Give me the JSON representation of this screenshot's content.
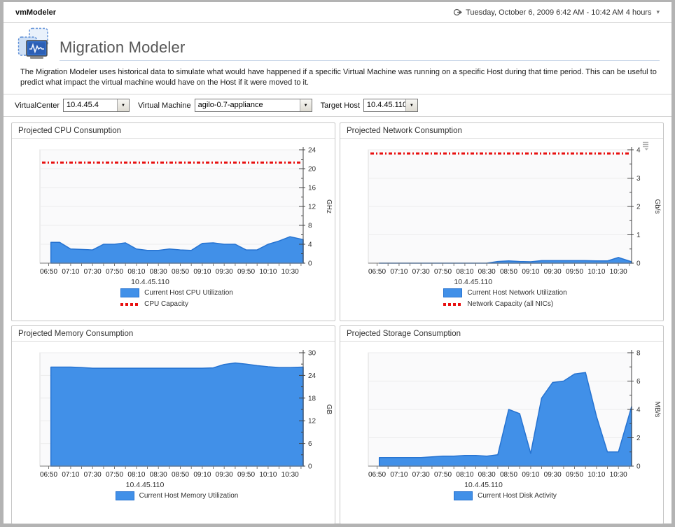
{
  "header": {
    "app_title": "vmModeler",
    "time_range": "Tuesday, October 6, 2009 6:42 AM - 10:42 AM 4 hours",
    "time_caret": "▾"
  },
  "page": {
    "title": "Migration Modeler",
    "description": "The Migration Modeler uses historical data to simulate what would have happened if a specific Virtual Machine was running on a specific Host during that time period. This can be useful to predict what impact the virtual machine would have on the Host if it were moved to it."
  },
  "filters": {
    "virtualcenter": {
      "label": "VirtualCenter",
      "value": "10.4.45.4"
    },
    "virtual_machine": {
      "label": "Virtual Machine",
      "value": "agilo-0.7-appliance"
    },
    "target_host": {
      "label": "Target Host",
      "value": "10.4.45.110"
    },
    "caret": "▼"
  },
  "colors": {
    "series_fill": "#4190e8",
    "series_stroke": "#2673d1",
    "capacity": "#e81010",
    "grid": "#ececec",
    "plot_bg": "#fafafb",
    "plot_border": "#dcdcdc",
    "axis": "#444444"
  },
  "chart_data": [
    {
      "id": "cpu",
      "type": "area",
      "panel_title": "Projected CPU Consumption",
      "ylabel": "GHz",
      "ylim": [
        0,
        24
      ],
      "ymajor": 4,
      "yminor": 2,
      "x_start": "06:42",
      "x_end": "10:42",
      "x_first_tick": "06:50",
      "xtick_minor_minutes": 10,
      "xlabel_every_minutes": 20,
      "x_ticklabels": [
        "06:50",
        "07:10",
        "07:30",
        "07:50",
        "08:10",
        "08:30",
        "08:50",
        "09:10",
        "09:30",
        "09:50",
        "10:10",
        "10:30"
      ],
      "times": [
        "06:52",
        "07:00",
        "07:10",
        "07:20",
        "07:30",
        "07:40",
        "07:50",
        "08:00",
        "08:10",
        "08:20",
        "08:30",
        "08:40",
        "08:50",
        "09:00",
        "09:10",
        "09:20",
        "09:30",
        "09:40",
        "09:50",
        "10:00",
        "10:10",
        "10:20",
        "10:30",
        "10:42"
      ],
      "values": [
        4.4,
        4.4,
        3.0,
        2.9,
        2.8,
        4.0,
        4.0,
        4.3,
        3.0,
        2.7,
        2.7,
        3.0,
        2.8,
        2.7,
        4.2,
        4.3,
        4.0,
        4.0,
        2.8,
        2.8,
        4.0,
        4.7,
        5.6,
        5.0
      ],
      "capacity_value": 21.3,
      "legend": {
        "host": "10.4.45.110",
        "series": "Current Host CPU Utilization",
        "capacity": "CPU Capacity"
      }
    },
    {
      "id": "network",
      "type": "area",
      "panel_title": "Projected Network Consumption",
      "ylabel": "Gb/s",
      "ylim": [
        0,
        4
      ],
      "ymajor": 1,
      "yminor": 0.5,
      "x_start": "06:42",
      "x_end": "10:42",
      "x_first_tick": "06:50",
      "xtick_minor_minutes": 10,
      "xlabel_every_minutes": 20,
      "x_ticklabels": [
        "06:50",
        "07:10",
        "07:30",
        "07:50",
        "08:10",
        "08:30",
        "08:50",
        "09:10",
        "09:30",
        "09:50",
        "10:10",
        "10:30"
      ],
      "times": [
        "06:52",
        "07:00",
        "07:10",
        "07:20",
        "07:30",
        "07:40",
        "07:50",
        "08:00",
        "08:10",
        "08:20",
        "08:30",
        "08:40",
        "08:50",
        "09:00",
        "09:10",
        "09:20",
        "09:30",
        "09:40",
        "09:50",
        "10:00",
        "10:10",
        "10:20",
        "10:30",
        "10:42"
      ],
      "values": [
        0,
        0,
        0,
        0,
        0,
        0,
        0,
        0,
        0,
        0,
        0,
        0.06,
        0.08,
        0.06,
        0.05,
        0.09,
        0.09,
        0.09,
        0.09,
        0.09,
        0.08,
        0.08,
        0.2,
        0.05
      ],
      "capacity_value": 3.87,
      "legend": {
        "host": "10.4.45.110",
        "series": "Current Host Network Utilization",
        "capacity": "Network Capacity (all NICs)"
      }
    },
    {
      "id": "memory",
      "type": "area",
      "panel_title": "Projected Memory Consumption",
      "ylabel": "GB",
      "ylim": [
        0,
        30
      ],
      "ymajor": 6,
      "yminor": 3,
      "x_start": "06:42",
      "x_end": "10:42",
      "x_first_tick": "06:50",
      "xtick_minor_minutes": 10,
      "xlabel_every_minutes": 20,
      "x_ticklabels": [
        "06:50",
        "07:10",
        "07:30",
        "07:50",
        "08:10",
        "08:30",
        "08:50",
        "09:10",
        "09:30",
        "09:50",
        "10:10",
        "10:30"
      ],
      "times": [
        "06:52",
        "07:00",
        "07:10",
        "07:20",
        "07:30",
        "07:40",
        "07:50",
        "08:00",
        "08:10",
        "08:20",
        "08:30",
        "08:40",
        "08:50",
        "09:00",
        "09:10",
        "09:20",
        "09:30",
        "09:40",
        "09:50",
        "10:00",
        "10:10",
        "10:20",
        "10:30",
        "10:42"
      ],
      "values": [
        26.2,
        26.2,
        26.2,
        26.1,
        25.9,
        25.9,
        25.9,
        25.9,
        25.9,
        25.9,
        25.9,
        25.9,
        25.9,
        25.9,
        25.9,
        26.0,
        26.9,
        27.3,
        27.0,
        26.6,
        26.3,
        26.1,
        26.1,
        26.2
      ],
      "capacity_value": null,
      "legend": {
        "host": "10.4.45.110",
        "series": "Current Host Memory Utilization"
      }
    },
    {
      "id": "storage",
      "type": "area",
      "panel_title": "Projected Storage Consumption",
      "ylabel": "MB/s",
      "ylim": [
        0,
        8
      ],
      "ymajor": 2,
      "yminor": 1,
      "x_start": "06:42",
      "x_end": "10:42",
      "x_first_tick": "06:50",
      "xtick_minor_minutes": 10,
      "xlabel_every_minutes": 20,
      "x_ticklabels": [
        "06:50",
        "07:10",
        "07:30",
        "07:50",
        "08:10",
        "08:30",
        "08:50",
        "09:10",
        "09:30",
        "09:50",
        "10:10",
        "10:30"
      ],
      "times": [
        "06:52",
        "07:00",
        "07:10",
        "07:20",
        "07:30",
        "07:40",
        "07:50",
        "08:00",
        "08:10",
        "08:20",
        "08:30",
        "08:40",
        "08:50",
        "09:00",
        "09:10",
        "09:20",
        "09:30",
        "09:40",
        "09:50",
        "10:00",
        "10:10",
        "10:20",
        "10:30",
        "10:42"
      ],
      "values": [
        0.6,
        0.6,
        0.6,
        0.6,
        0.6,
        0.65,
        0.7,
        0.7,
        0.75,
        0.75,
        0.7,
        0.8,
        4.0,
        3.7,
        0.9,
        4.8,
        5.9,
        6.0,
        6.5,
        6.6,
        3.5,
        1.0,
        1.0,
        4.2
      ],
      "capacity_value": null,
      "legend": {
        "host": "10.4.45.110",
        "series": "Current Host Disk Activity"
      }
    }
  ]
}
